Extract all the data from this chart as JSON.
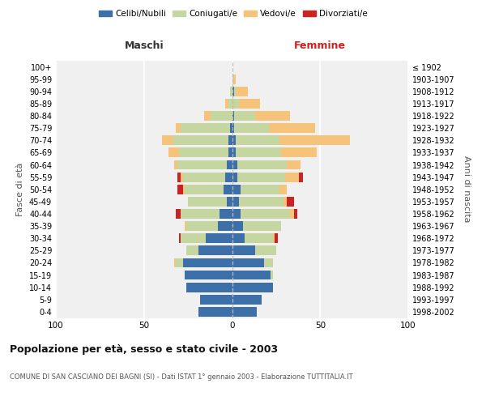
{
  "age_groups": [
    "0-4",
    "5-9",
    "10-14",
    "15-19",
    "20-24",
    "25-29",
    "30-34",
    "35-39",
    "40-44",
    "45-49",
    "50-54",
    "55-59",
    "60-64",
    "65-69",
    "70-74",
    "75-79",
    "80-84",
    "85-89",
    "90-94",
    "95-99",
    "100+"
  ],
  "birth_years": [
    "1998-2002",
    "1993-1997",
    "1988-1992",
    "1983-1987",
    "1978-1982",
    "1973-1977",
    "1968-1972",
    "1963-1967",
    "1958-1962",
    "1953-1957",
    "1948-1952",
    "1943-1947",
    "1938-1942",
    "1933-1937",
    "1928-1932",
    "1923-1927",
    "1918-1922",
    "1913-1917",
    "1908-1912",
    "1903-1907",
    "≤ 1902"
  ],
  "males": {
    "celibe": [
      19,
      18,
      26,
      27,
      28,
      19,
      15,
      8,
      7,
      3,
      5,
      4,
      3,
      2,
      2,
      1,
      0,
      0,
      0,
      0,
      0
    ],
    "coniugato": [
      0,
      0,
      0,
      0,
      4,
      7,
      14,
      18,
      22,
      22,
      22,
      24,
      28,
      28,
      32,
      28,
      12,
      2,
      1,
      0,
      0
    ],
    "vedovo": [
      0,
      0,
      0,
      0,
      1,
      0,
      0,
      1,
      0,
      0,
      1,
      1,
      2,
      6,
      6,
      3,
      4,
      2,
      0,
      0,
      0
    ],
    "divorziato": [
      0,
      0,
      0,
      0,
      0,
      0,
      1,
      0,
      3,
      0,
      3,
      2,
      0,
      0,
      0,
      0,
      0,
      0,
      0,
      0,
      0
    ]
  },
  "females": {
    "nubile": [
      14,
      17,
      23,
      22,
      18,
      13,
      7,
      6,
      5,
      4,
      5,
      3,
      3,
      2,
      2,
      1,
      1,
      0,
      1,
      0,
      0
    ],
    "coniugata": [
      0,
      0,
      0,
      1,
      5,
      12,
      16,
      22,
      28,
      25,
      22,
      27,
      28,
      26,
      25,
      20,
      12,
      4,
      1,
      0,
      0
    ],
    "vedova": [
      0,
      0,
      0,
      0,
      0,
      0,
      1,
      0,
      2,
      2,
      4,
      8,
      8,
      20,
      40,
      26,
      20,
      12,
      7,
      2,
      0
    ],
    "divorziata": [
      0,
      0,
      0,
      0,
      0,
      0,
      2,
      0,
      2,
      4,
      0,
      2,
      0,
      0,
      0,
      0,
      0,
      0,
      0,
      0,
      0
    ]
  },
  "colors": {
    "celibe": "#3d6fa8",
    "coniugato": "#c5d6a0",
    "vedovo": "#f5c47a",
    "divorziato": "#cc2222"
  },
  "legend_labels": [
    "Celibi/Nubili",
    "Coniugati/e",
    "Vedovi/e",
    "Divorziati/e"
  ],
  "title": "Popolazione per età, sesso e stato civile - 2003",
  "subtitle": "COMUNE DI SAN CASCIANO DEI BAGNI (SI) - Dati ISTAT 1° gennaio 2003 - Elaborazione TUTTITALIA.IT",
  "xlabel_left": "Maschi",
  "xlabel_right": "Femmine",
  "ylabel_left": "Fasce di età",
  "ylabel_right": "Anni di nascita",
  "xlim": 100,
  "bg_color": "#f0f0f0"
}
